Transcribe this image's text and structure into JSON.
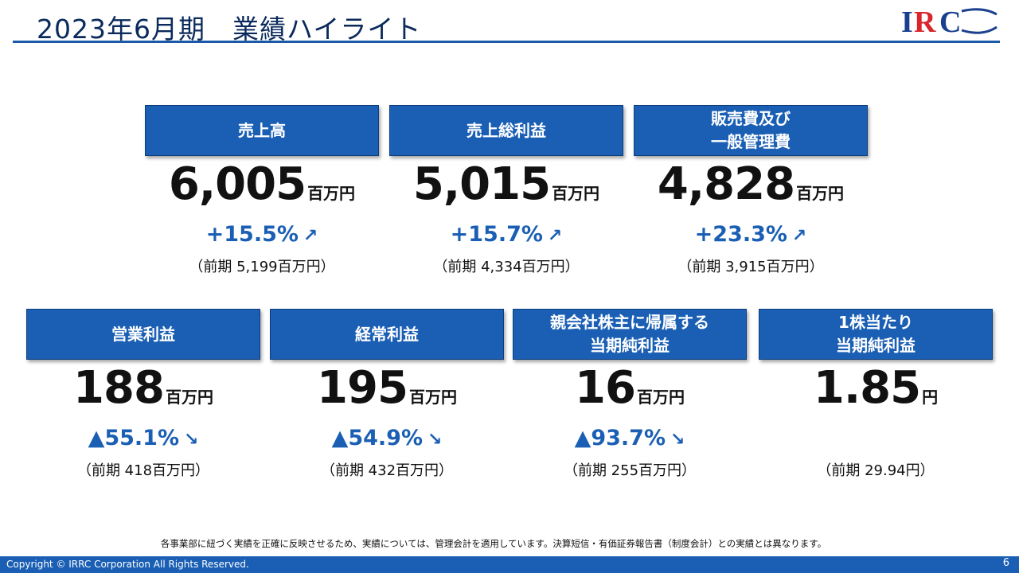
{
  "header": {
    "title": "2023年6月期　業績ハイライト",
    "logo_text": "IRC"
  },
  "colors": {
    "brand_blue": "#1a5fb4",
    "title_navy": "#0b2a5c",
    "logo_red": "#d8262e"
  },
  "kpis_row1": [
    {
      "label": "売上高",
      "value": "6,005",
      "unit": "百万円",
      "change": "+15.5%",
      "arrow": "↗",
      "prior": "（前期 5,199百万円）"
    },
    {
      "label": "売上総利益",
      "value": "5,015",
      "unit": "百万円",
      "change": "+15.7%",
      "arrow": "↗",
      "prior": "（前期 4,334百万円）"
    },
    {
      "label": "販売費及び\n一般管理費",
      "value": "4,828",
      "unit": "百万円",
      "change": "+23.3%",
      "arrow": "↗",
      "prior": "（前期 3,915百万円）"
    }
  ],
  "kpis_row2": [
    {
      "label": "営業利益",
      "value": "188",
      "unit": "百万円",
      "change": "▲55.1%",
      "arrow": "↘",
      "prior": "（前期 418百万円）"
    },
    {
      "label": "経常利益",
      "value": "195",
      "unit": "百万円",
      "change": "▲54.9%",
      "arrow": "↘",
      "prior": "（前期 432百万円）"
    },
    {
      "label": "親会社株主に帰属する\n当期純利益",
      "value": "16",
      "unit": "百万円",
      "change": "▲93.7%",
      "arrow": "↘",
      "prior": "（前期 255百万円）"
    },
    {
      "label": "1株当たり\n当期純利益",
      "value": "1.85",
      "unit": "円",
      "change": "",
      "arrow": "",
      "prior": "（前期 29.94円）"
    }
  ],
  "footnote": "各事業部に紐づく実績を正確に反映させるため、実績については、管理会計を適用しています。決算短信・有価証券報告書（制度会計）との実績とは異なります。",
  "footer": {
    "copyright": "Copyright © IRRC Corporation All Rights Reserved.",
    "page_number": "6"
  }
}
